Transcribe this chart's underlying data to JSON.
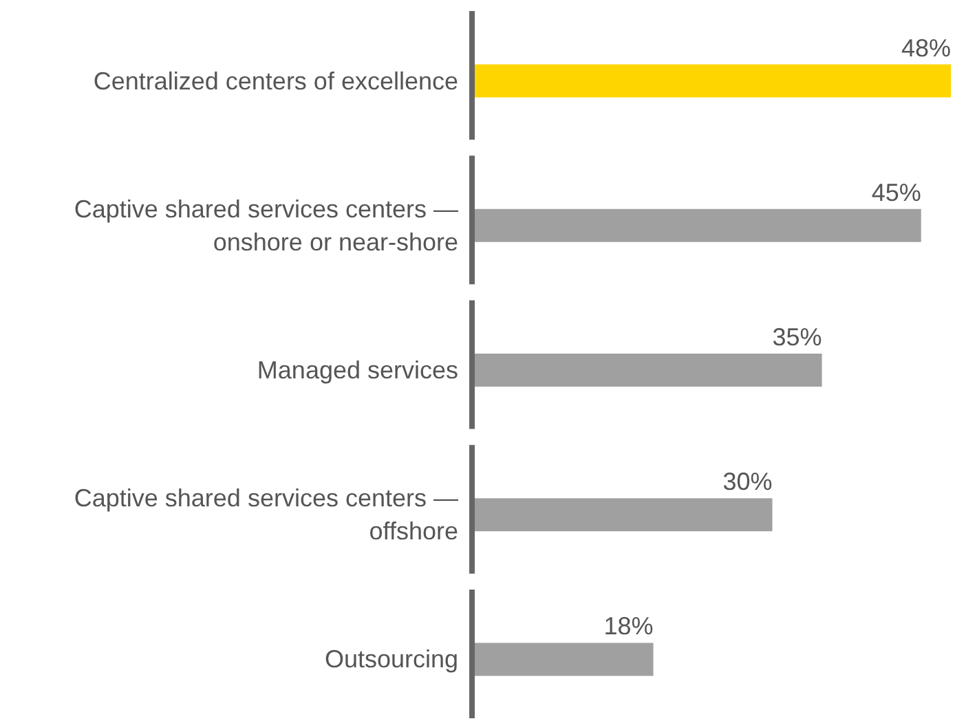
{
  "chart_data": {
    "type": "bar",
    "orientation": "horizontal",
    "categories": [
      "Centralized centers of excellence",
      "Captive shared services centers — onshore or near-shore",
      "Managed services",
      "Captive shared services centers — offshore",
      "Outsourcing"
    ],
    "values": [
      48,
      45,
      35,
      30,
      18
    ],
    "colors": [
      "#ffd500",
      "#a0a0a0",
      "#a0a0a0",
      "#a0a0a0",
      "#a0a0a0"
    ],
    "value_labels": [
      "48%",
      "45%",
      "35%",
      "30%",
      "18%"
    ]
  }
}
